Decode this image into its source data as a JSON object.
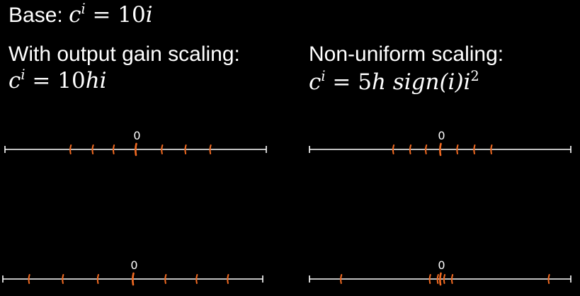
{
  "base": {
    "label": "Base:",
    "formula": {
      "lhs_var": "c",
      "lhs_sup": "i",
      "eq": "=",
      "rhs_num": "10",
      "rhs_var": "i"
    }
  },
  "gain": {
    "label": "With output gain scaling:",
    "formula": {
      "lhs_var": "c",
      "lhs_sup": "i",
      "eq": "=",
      "rhs_num": "10",
      "rhs_var": "hi"
    }
  },
  "nonuniform": {
    "label": "Non-uniform scaling:",
    "formula": {
      "lhs_var": "c",
      "lhs_sup": "i",
      "eq": "=",
      "rhs_num": "5",
      "rhs_h": "h",
      "rhs_sign": "sign",
      "rhs_arg": "(i)",
      "rhs_i": "i",
      "rhs_sup": "2"
    }
  },
  "colors": {
    "background": "#000000",
    "axis": "#ffffff",
    "tick": "#f26a21"
  },
  "lines": [
    {
      "id": "top-left",
      "zero_label": "0",
      "range": [
        -100,
        100
      ],
      "ticks": [
        -50,
        -33,
        -17,
        0,
        20,
        38,
        57
      ]
    },
    {
      "id": "top-right",
      "zero_label": "0",
      "range": [
        -100,
        100
      ],
      "ticks": [
        -36,
        -23,
        -11,
        0,
        13,
        26,
        39
      ]
    },
    {
      "id": "bottom-left",
      "zero_label": "0",
      "range": [
        -100,
        100
      ],
      "ticks": [
        -80,
        -54,
        -27,
        0,
        25,
        49,
        73
      ]
    },
    {
      "id": "bottom-right",
      "zero_label": "0",
      "range": [
        -100,
        100
      ],
      "ticks": [
        -76,
        -8,
        -2,
        0,
        3,
        9,
        83
      ]
    }
  ]
}
